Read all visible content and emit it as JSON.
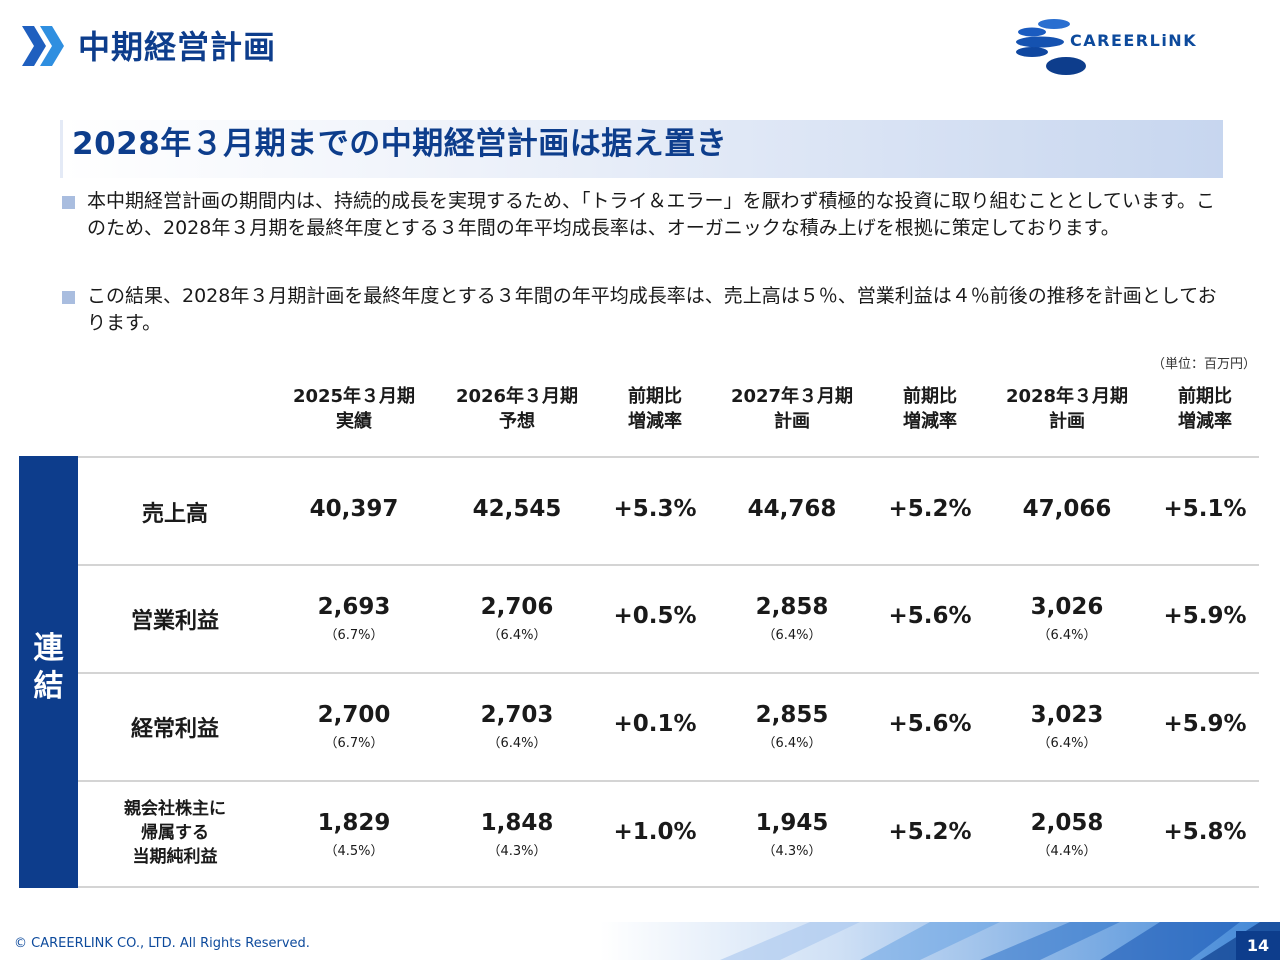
{
  "page": {
    "title": "中期経営計画",
    "banner": "2028年３月期までの中期経営計画は据え置き",
    "bullets": [
      "本中期経営計画の期間内は、持続的成長を実現するため、「トライ＆エラー」を厭わず積極的な投資に取り組むこととしています。このため、2028年３月期を最終年度とする３年間の年平均成長率は、オーガニックな積み上げを根拠に策定しております。",
      "この結果、2028年３月期計画を最終年度とする３年間の年平均成長率は、売上高は５％、営業利益は４％前後の推移を計画としております。"
    ],
    "unit": "（単位：百万円）"
  },
  "logo": {
    "text": "CAREERLiNK"
  },
  "table": {
    "headers": [
      {
        "line1": "2025年３月期",
        "line2": "実績"
      },
      {
        "line1": "2026年３月期",
        "line2": "予想"
      },
      {
        "line1": "前期比",
        "line2": "増減率"
      },
      {
        "line1": "2027年３月期",
        "line2": "計画"
      },
      {
        "line1": "前期比",
        "line2": "増減率"
      },
      {
        "line1": "2028年３月期",
        "line2": "計画"
      },
      {
        "line1": "前期比",
        "line2": "増減率"
      }
    ],
    "group_label": "連\n結",
    "rows": [
      {
        "label": "売上高",
        "cells": [
          {
            "value": "40,397",
            "ratio": ""
          },
          {
            "value": "42,545",
            "ratio": ""
          },
          {
            "value": "+5.3%",
            "ratio": ""
          },
          {
            "value": "44,768",
            "ratio": ""
          },
          {
            "value": "+5.2%",
            "ratio": ""
          },
          {
            "value": "47,066",
            "ratio": ""
          },
          {
            "value": "+5.1%",
            "ratio": ""
          }
        ]
      },
      {
        "label": "営業利益",
        "cells": [
          {
            "value": "2,693",
            "ratio": "（6.7%）"
          },
          {
            "value": "2,706",
            "ratio": "（6.4%）"
          },
          {
            "value": "+0.5%",
            "ratio": ""
          },
          {
            "value": "2,858",
            "ratio": "（6.4%）"
          },
          {
            "value": "+5.6%",
            "ratio": ""
          },
          {
            "value": "3,026",
            "ratio": "（6.4%）"
          },
          {
            "value": "+5.9%",
            "ratio": ""
          }
        ]
      },
      {
        "label": "経常利益",
        "cells": [
          {
            "value": "2,700",
            "ratio": "（6.7%）"
          },
          {
            "value": "2,703",
            "ratio": "（6.4%）"
          },
          {
            "value": "+0.1%",
            "ratio": ""
          },
          {
            "value": "2,855",
            "ratio": "（6.4%）"
          },
          {
            "value": "+5.6%",
            "ratio": ""
          },
          {
            "value": "3,023",
            "ratio": "（6.4%）"
          },
          {
            "value": "+5.9%",
            "ratio": ""
          }
        ]
      },
      {
        "label_lines": [
          "親会社株主に",
          "帰属する",
          "当期純利益"
        ],
        "cells": [
          {
            "value": "1,829",
            "ratio": "（4.5%）"
          },
          {
            "value": "1,848",
            "ratio": "（4.3%）"
          },
          {
            "value": "+1.0%",
            "ratio": ""
          },
          {
            "value": "1,945",
            "ratio": "（4.3%）"
          },
          {
            "value": "+5.2%",
            "ratio": ""
          },
          {
            "value": "2,058",
            "ratio": "（4.4%）"
          },
          {
            "value": "+5.8%",
            "ratio": ""
          }
        ]
      }
    ]
  },
  "footer": {
    "copyright": "© CAREERLINK CO., LTD. All Rights Reserved.",
    "page_number": "14"
  },
  "colors": {
    "brand_navy": "#0d3d8c",
    "banner_tint": "#c7d6ef",
    "bullet_square": "#a9bddf",
    "row_divider": "#d4d4d4"
  },
  "icons": [
    "double-chevron-icon",
    "careerlink-logo"
  ]
}
